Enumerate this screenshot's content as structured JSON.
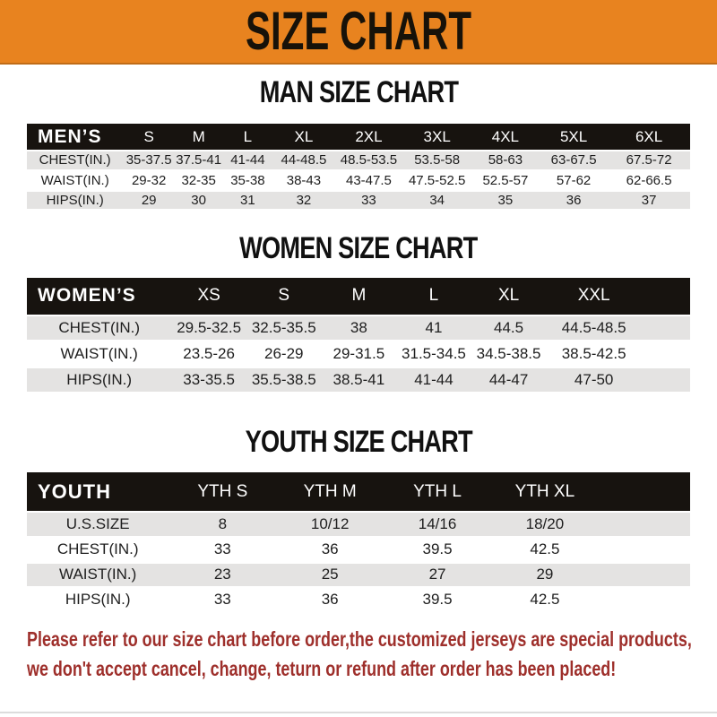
{
  "banner": {
    "title": "SIZE CHART"
  },
  "tables": [
    {
      "id": "men",
      "heading": "MAN SIZE CHART",
      "header_label": "MEN’S",
      "columns": [
        "S",
        "M",
        "L",
        "XL",
        "2XL",
        "3XL",
        "4XL",
        "5XL",
        "6XL"
      ],
      "rows": [
        {
          "label": "CHEST(IN.)",
          "values": [
            "35-37.5",
            "37.5-41",
            "41-44",
            "44-48.5",
            "48.5-53.5",
            "53.5-58",
            "58-63",
            "63-67.5",
            "67.5-72"
          ]
        },
        {
          "label": "WAIST(IN.)",
          "values": [
            "29-32",
            "32-35",
            "35-38",
            "38-43",
            "43-47.5",
            "47.5-52.5",
            "52.5-57",
            "57-62",
            "62-66.5"
          ]
        },
        {
          "label": "HIPS(IN.)",
          "values": [
            "29",
            "30",
            "31",
            "32",
            "33",
            "34",
            "35",
            "36",
            "37"
          ]
        }
      ]
    },
    {
      "id": "women",
      "heading": "WOMEN SIZE CHART",
      "header_label": "WOMEN’S",
      "columns": [
        "XS",
        "S",
        "M",
        "L",
        "XL",
        "XXL"
      ],
      "rows": [
        {
          "label": "CHEST(IN.)",
          "values": [
            "29.5-32.5",
            "32.5-35.5",
            "38",
            "41",
            "44.5",
            "44.5-48.5"
          ]
        },
        {
          "label": "WAIST(IN.)",
          "values": [
            "23.5-26",
            "26-29",
            "29-31.5",
            "31.5-34.5",
            "34.5-38.5",
            "38.5-42.5"
          ]
        },
        {
          "label": "HIPS(IN.)",
          "values": [
            "33-35.5",
            "35.5-38.5",
            "38.5-41",
            "41-44",
            "44-47",
            "47-50"
          ]
        }
      ]
    },
    {
      "id": "youth",
      "heading": "YOUTH SIZE CHART",
      "header_label": "YOUTH",
      "columns": [
        "YTH S",
        "YTH M",
        "YTH L",
        "YTH XL"
      ],
      "rows": [
        {
          "label": "U.S.SIZE",
          "values": [
            "8",
            "10/12",
            "14/16",
            "18/20"
          ]
        },
        {
          "label": "CHEST(IN.)",
          "values": [
            "33",
            "36",
            "39.5",
            "42.5"
          ]
        },
        {
          "label": "WAIST(IN.)",
          "values": [
            "23",
            "25",
            "27",
            "29"
          ]
        },
        {
          "label": "HIPS(IN.)",
          "values": [
            "33",
            "36",
            "39.5",
            "42.5"
          ]
        }
      ]
    }
  ],
  "disclaimer": {
    "line1": "Please refer to our size chart before order,the customized jerseys are special products,",
    "line2": "we don't accept cancel, change, teturn or refund after order has been placed!"
  },
  "colors": {
    "banner_orange": "#E8831F",
    "header_black": "#17130F",
    "stripe_gray": "#E4E3E2",
    "disclaimer_red": "#9E2F2B"
  }
}
